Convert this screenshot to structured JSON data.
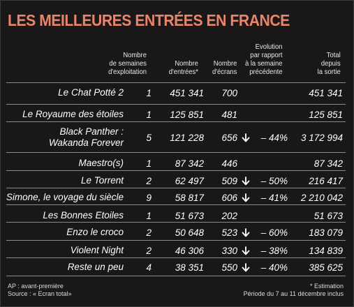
{
  "title": "LES MEILLEURES ENTRÉES EN FRANCE",
  "headers": {
    "weeks": "Nombre\nde semaines\nd'exploitation",
    "entries": "Nombre\nd'entrées*",
    "screens": "Nombre\nd'écrans",
    "evolution": "Evolution\npar rapport\nà la semaine\nprécédente",
    "total": "Total\ndepuis\nla sortie"
  },
  "icon": "down-arrow-icon",
  "rows": [
    {
      "film": [
        "Le Chat Potté 2"
      ],
      "weeks": "1",
      "entries": "451 341",
      "screens": "700",
      "evolution": "",
      "total": "451 341"
    },
    {
      "film": [
        "Le Royaume des étoiles"
      ],
      "weeks": "1",
      "entries": "125 851",
      "screens": "481",
      "evolution": "",
      "total": "125 851"
    },
    {
      "film": [
        "Black Panther :",
        "Wakanda Forever"
      ],
      "weeks": "5",
      "entries": "121 228",
      "screens": "656",
      "evolution": "– 44%",
      "total": "3 172 994"
    },
    {
      "film": [
        "Maestro(s)"
      ],
      "weeks": "1",
      "entries": "87 342",
      "screens": "446",
      "evolution": "",
      "total": "87 342"
    },
    {
      "film": [
        "Le Torrent"
      ],
      "weeks": "2",
      "entries": "62 497",
      "screens": "509",
      "evolution": "– 50%",
      "total": "216 417"
    },
    {
      "film": [
        "Simone, le voyage du siècle"
      ],
      "weeks": "9",
      "entries": "58 817",
      "screens": "606",
      "evolution": "– 41%",
      "total": "2 210 042"
    },
    {
      "film": [
        "Les Bonnes Etoiles"
      ],
      "weeks": "1",
      "entries": "51 673",
      "screens": "202",
      "evolution": "",
      "total": "51 673"
    },
    {
      "film": [
        "Enzo le croco"
      ],
      "weeks": "2",
      "entries": "50 648",
      "screens": "523",
      "evolution": "– 60%",
      "total": "183 079"
    },
    {
      "film": [
        "Violent Night"
      ],
      "weeks": "2",
      "entries": "46 306",
      "screens": "330",
      "evolution": "– 38%",
      "total": "134 839"
    },
    {
      "film": [
        "Reste un peu"
      ],
      "weeks": "4",
      "entries": "38 351",
      "screens": "550",
      "evolution": "– 40%",
      "total": "385 625"
    }
  ],
  "footer": {
    "ap": "AP : avant-première",
    "source": "Source : « Ecran total»",
    "estimation": "* Estimation",
    "period": "Période du 7 au 11 décembre inclus"
  }
}
